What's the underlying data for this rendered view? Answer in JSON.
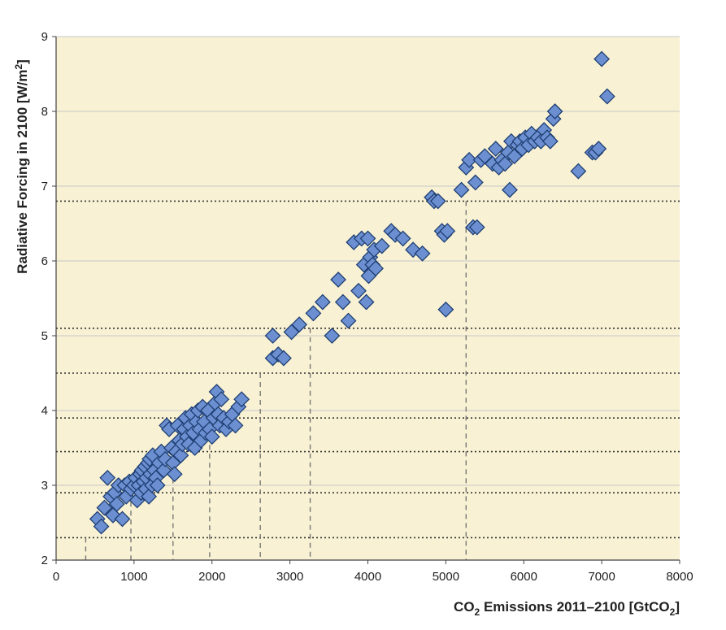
{
  "chart_data": {
    "type": "scatter",
    "xlabel": "CO2 Emissions 2011–2100 [GtCO2]",
    "xlabel_parts": {
      "a": "CO",
      "b": "2",
      "c": " Emissions 2011–2100 [GtCO",
      "d": "2",
      "e": "]"
    },
    "ylabel": "Radiative Forcing in 2100 [W/m2]",
    "ylabel_parts": {
      "a": "Radiative Forcing in 2100 [W/m",
      "b": "2",
      "c": "]"
    },
    "xlim": [
      0,
      8000
    ],
    "ylim": [
      2,
      9
    ],
    "xticks": [
      0,
      1000,
      2000,
      3000,
      4000,
      5000,
      6000,
      7000,
      8000
    ],
    "yticks": [
      2,
      3,
      4,
      5,
      6,
      7,
      8,
      9
    ],
    "grid": true,
    "background_color": "#f8f1d3",
    "marker_color": "#6b8fd0",
    "marker_edge_color": "#1f3f73",
    "reference_lines_y": [
      2.3,
      2.9,
      3.45,
      3.9,
      4.5,
      5.1,
      6.8
    ],
    "reference_lines_x": [
      {
        "x": 380,
        "y": 2.3
      },
      {
        "x": 960,
        "y": 2.9
      },
      {
        "x": 1500,
        "y": 3.45
      },
      {
        "x": 1970,
        "y": 3.9
      },
      {
        "x": 2620,
        "y": 4.5
      },
      {
        "x": 3260,
        "y": 5.1
      },
      {
        "x": 5260,
        "y": 6.8
      }
    ],
    "points": [
      [
        530,
        2.55
      ],
      [
        580,
        2.45
      ],
      [
        620,
        2.7
      ],
      [
        660,
        3.1
      ],
      [
        700,
        2.85
      ],
      [
        730,
        2.6
      ],
      [
        750,
        2.9
      ],
      [
        780,
        2.75
      ],
      [
        800,
        3.0
      ],
      [
        850,
        2.55
      ],
      [
        880,
        3.0
      ],
      [
        900,
        2.85
      ],
      [
        940,
        3.05
      ],
      [
        960,
        2.95
      ],
      [
        1000,
        3.0
      ],
      [
        1020,
        3.1
      ],
      [
        1040,
        2.8
      ],
      [
        1060,
        3.0
      ],
      [
        1080,
        3.15
      ],
      [
        1090,
        2.9
      ],
      [
        1100,
        3.2
      ],
      [
        1120,
        3.05
      ],
      [
        1140,
        3.25
      ],
      [
        1150,
        2.95
      ],
      [
        1160,
        3.1
      ],
      [
        1180,
        3.3
      ],
      [
        1190,
        2.85
      ],
      [
        1200,
        3.35
      ],
      [
        1210,
        3.15
      ],
      [
        1230,
        3.0
      ],
      [
        1240,
        3.4
      ],
      [
        1260,
        3.2
      ],
      [
        1280,
        3.1
      ],
      [
        1300,
        3.0
      ],
      [
        1320,
        3.3
      ],
      [
        1350,
        3.45
      ],
      [
        1380,
        3.2
      ],
      [
        1400,
        3.35
      ],
      [
        1420,
        3.8
      ],
      [
        1450,
        3.75
      ],
      [
        1480,
        3.5
      ],
      [
        1500,
        3.3
      ],
      [
        1520,
        3.15
      ],
      [
        1540,
        3.45
      ],
      [
        1560,
        3.8
      ],
      [
        1580,
        3.6
      ],
      [
        1600,
        3.4
      ],
      [
        1620,
        3.55
      ],
      [
        1640,
        3.75
      ],
      [
        1660,
        3.9
      ],
      [
        1680,
        3.65
      ],
      [
        1700,
        3.55
      ],
      [
        1720,
        3.8
      ],
      [
        1740,
        3.95
      ],
      [
        1760,
        3.7
      ],
      [
        1780,
        3.5
      ],
      [
        1800,
        3.85
      ],
      [
        1820,
        4.0
      ],
      [
        1840,
        3.75
      ],
      [
        1860,
        3.6
      ],
      [
        1880,
        4.05
      ],
      [
        1900,
        3.85
      ],
      [
        1920,
        3.7
      ],
      [
        1950,
        4.0
      ],
      [
        1970,
        3.75
      ],
      [
        2000,
        3.65
      ],
      [
        2020,
        3.9
      ],
      [
        2040,
        4.1
      ],
      [
        2060,
        4.25
      ],
      [
        2080,
        3.95
      ],
      [
        2100,
        3.8
      ],
      [
        2120,
        4.15
      ],
      [
        2150,
        3.9
      ],
      [
        2180,
        3.75
      ],
      [
        2220,
        3.85
      ],
      [
        2260,
        3.95
      ],
      [
        2300,
        3.8
      ],
      [
        2340,
        4.05
      ],
      [
        2380,
        4.15
      ],
      [
        2780,
        5.0
      ],
      [
        2780,
        4.7
      ],
      [
        2850,
        4.75
      ],
      [
        2920,
        4.7
      ],
      [
        3020,
        5.05
      ],
      [
        3120,
        5.15
      ],
      [
        3300,
        5.3
      ],
      [
        3420,
        5.45
      ],
      [
        3540,
        5.0
      ],
      [
        3620,
        5.75
      ],
      [
        3680,
        5.45
      ],
      [
        3750,
        5.2
      ],
      [
        3820,
        6.25
      ],
      [
        3880,
        5.6
      ],
      [
        3920,
        6.3
      ],
      [
        3950,
        5.95
      ],
      [
        3980,
        5.45
      ],
      [
        4000,
        6.3
      ],
      [
        4010,
        5.8
      ],
      [
        4030,
        6.05
      ],
      [
        4060,
        5.95
      ],
      [
        4080,
        6.15
      ],
      [
        4100,
        5.9
      ],
      [
        4180,
        6.2
      ],
      [
        4300,
        6.4
      ],
      [
        4350,
        6.35
      ],
      [
        4450,
        6.3
      ],
      [
        4580,
        6.15
      ],
      [
        4700,
        6.1
      ],
      [
        4820,
        6.85
      ],
      [
        4850,
        6.8
      ],
      [
        4900,
        6.8
      ],
      [
        4950,
        6.4
      ],
      [
        4980,
        6.35
      ],
      [
        5000,
        5.35
      ],
      [
        5020,
        6.4
      ],
      [
        5200,
        6.95
      ],
      [
        5260,
        7.25
      ],
      [
        5300,
        7.35
      ],
      [
        5350,
        6.45
      ],
      [
        5380,
        7.05
      ],
      [
        5400,
        6.45
      ],
      [
        5450,
        7.35
      ],
      [
        5500,
        7.4
      ],
      [
        5600,
        7.3
      ],
      [
        5640,
        7.5
      ],
      [
        5680,
        7.25
      ],
      [
        5720,
        7.35
      ],
      [
        5760,
        7.3
      ],
      [
        5800,
        7.45
      ],
      [
        5820,
        6.95
      ],
      [
        5840,
        7.6
      ],
      [
        5880,
        7.4
      ],
      [
        5920,
        7.55
      ],
      [
        5950,
        7.6
      ],
      [
        5980,
        7.5
      ],
      [
        6020,
        7.65
      ],
      [
        6060,
        7.55
      ],
      [
        6100,
        7.7
      ],
      [
        6140,
        7.6
      ],
      [
        6180,
        7.65
      ],
      [
        6220,
        7.6
      ],
      [
        6260,
        7.75
      ],
      [
        6300,
        7.65
      ],
      [
        6340,
        7.6
      ],
      [
        6380,
        7.9
      ],
      [
        6400,
        8.0
      ],
      [
        6700,
        7.2
      ],
      [
        6880,
        7.45
      ],
      [
        6920,
        7.45
      ],
      [
        6960,
        7.5
      ],
      [
        7000,
        8.7
      ],
      [
        7070,
        8.2
      ]
    ]
  }
}
